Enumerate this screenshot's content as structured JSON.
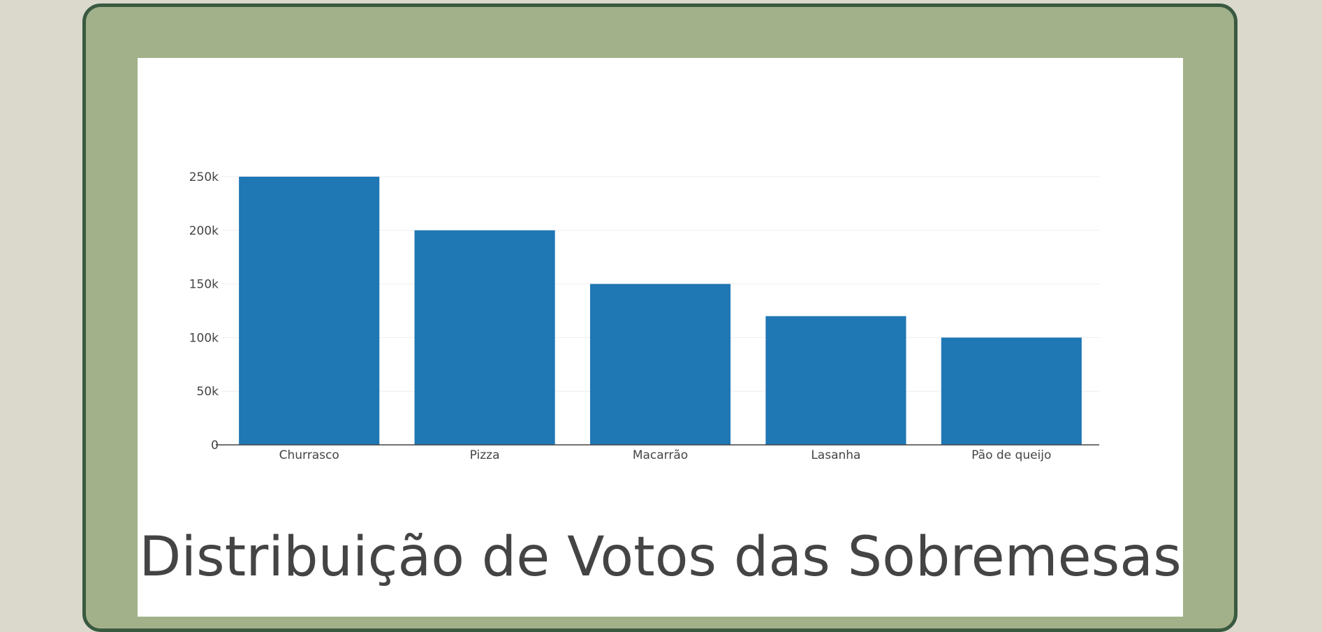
{
  "page": {
    "caption": "Distribuição de Votos das Sobremesas"
  },
  "colors": {
    "background": "#dbd9cc",
    "frame": "#a3b18a",
    "frame_border": "#3a5a40",
    "bar": "#1f77b4",
    "grid": "#eeeeee",
    "text": "#444444"
  },
  "chart_data": {
    "type": "bar",
    "categories": [
      "Churrasco",
      "Pizza",
      "Macarrão",
      "Lasanha",
      "Pão de queijo"
    ],
    "values": [
      250000,
      200000,
      150000,
      120000,
      100000
    ],
    "title": "",
    "xlabel": "",
    "ylabel": "",
    "ylim": [
      0,
      250000
    ],
    "yticks": [
      0,
      50000,
      100000,
      150000,
      200000,
      250000
    ],
    "ytick_labels": [
      "0",
      "50k",
      "100k",
      "150k",
      "200k",
      "250k"
    ],
    "grid": true,
    "legend": "none"
  }
}
